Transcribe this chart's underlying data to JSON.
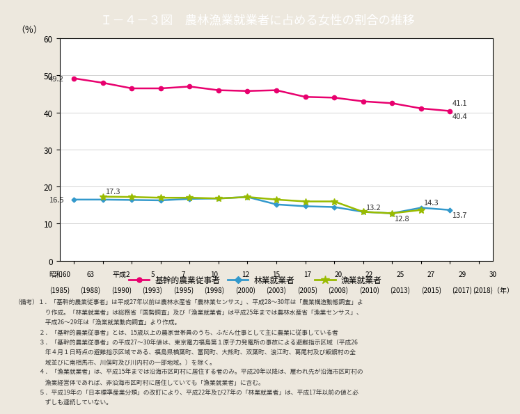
{
  "title": "Ｉ－４－３図　農林漁業就業者に占める女性の割合の推移",
  "title_bg_color": "#4BB8B8",
  "title_text_color": "#ffffff",
  "bg_color": "#EDE8DE",
  "plot_bg_color": "#ffffff",
  "ylabel": "（％）",
  "ylim": [
    0,
    60
  ],
  "yticks": [
    0,
    10,
    20,
    30,
    40,
    50,
    60
  ],
  "x_years": [
    1985,
    1988,
    1990,
    1993,
    1995,
    1998,
    2000,
    2003,
    2005,
    2008,
    2010,
    2013,
    2015,
    2017,
    2018
  ],
  "x_labels_top": [
    "昭和60",
    "63",
    "平成2",
    "5",
    "7",
    "10",
    "12",
    "15",
    "17",
    "20",
    "22",
    "25",
    "27",
    "29",
    "30"
  ],
  "x_labels_bot": [
    "(1985)",
    "(1988)",
    "(1990)",
    "(1993)",
    "(1995)",
    "(1998)",
    "(2000)",
    "(2003)",
    "(2005)",
    "(2008)",
    "(2010)",
    "(2013)",
    "(2015)",
    "(2017)",
    "(2018)（年）"
  ],
  "kikan_values": [
    49.2,
    48.0,
    46.5,
    46.5,
    47.0,
    46.0,
    45.8,
    46.0,
    44.2,
    44.0,
    43.0,
    42.5,
    41.1,
    40.4,
    null
  ],
  "ringyo_values": [
    16.5,
    16.5,
    16.4,
    16.3,
    16.7,
    16.8,
    17.2,
    15.2,
    14.7,
    14.5,
    13.2,
    12.8,
    14.3,
    13.7,
    null
  ],
  "gyogyo_values": [
    null,
    17.3,
    17.2,
    17.0,
    17.0,
    16.8,
    17.2,
    16.5,
    16.0,
    16.0,
    13.2,
    12.8,
    13.7,
    null,
    null
  ],
  "kikan_color": "#E8006E",
  "ringyo_color": "#3399CC",
  "gyogyo_color": "#99BB00",
  "kikan_label": "基幹的農業従事者",
  "ringyo_label": "林業就業者",
  "gyogyo_label": "漁業就業者",
  "footnotes": [
    "（備考）１．「基幹的農業従事者」は平成27年以前は農林水産省「農林業センサス」、平成28～30年は「農業構造動態調査」よ",
    "　　　　　り作成。「林業就業者」は総務省「国勢調査」及び「漁業就業者」は平成25年までは農林水産省「漁業センサス」、",
    "　　　　　平成26～29年は「漁業就業動向調査」より作成。",
    "　　　　２．「基幹的農業従事者」とは、15歳以上の農家世帯員のうち、ふだん仕事として主に農業に従事している者",
    "　　　　３．「基幹的農業従事者」の平成27～30年値は、東京電力福島第１原子力発電所の事故による避難指示区域（平成26",
    "　　　　　年４月１日時点の避難指示区域である、福島県楢葉町、富岡町、大熊町、双葉町、浪江町、葛尾村及び飯舘村の全",
    "　　　　　域並びに南相馬市、川俣町及び川内村の一部地域。）を除く。",
    "　　　　４．「漁業就業者」は、平成15年までは沿海市区町村に居住する者のみ。平成20年以降は、雇われ先が沿海市区町村の",
    "　　　　　漁業経営体であれば、非沿海市区町村に居住していても「漁業就業者」に含む。",
    "　　　　５．平成19年の「日本標準産業分類」の改訂により、平成22年及び27年の「林業就業者」は、平成17年以前の値と必",
    "　　　　　ずしも連続していない。"
  ]
}
